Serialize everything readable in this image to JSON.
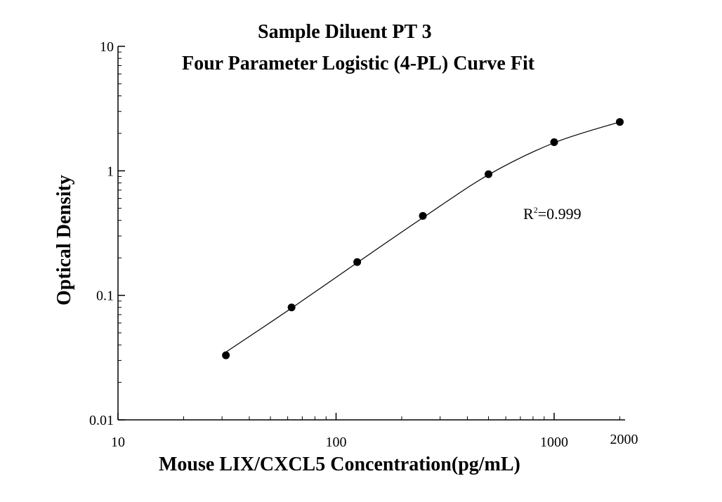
{
  "chart_data": {
    "type": "scatter",
    "title_lines": [
      "Sample Diluent PT 3",
      "Four Parameter Logistic (4-PL) Curve Fit"
    ],
    "xlabel": "Mouse LIX/CXCL5 Concentration(pg/mL)",
    "ylabel": "Optical Density",
    "x_scale": "log",
    "y_scale": "log",
    "xlim": [
      10,
      2000
    ],
    "ylim": [
      0.01,
      10
    ],
    "x_ticks": [
      {
        "value": 10,
        "label": "10"
      },
      {
        "value": 100,
        "label": "100"
      },
      {
        "value": 1000,
        "label": "1000"
      },
      {
        "value": 2000,
        "label": "2000"
      }
    ],
    "y_ticks": [
      {
        "value": 0.01,
        "label": "0.01"
      },
      {
        "value": 0.1,
        "label": "0.1"
      },
      {
        "value": 1,
        "label": "1"
      },
      {
        "value": 10,
        "label": "10"
      }
    ],
    "points": [
      {
        "x": 31.25,
        "y": 0.033
      },
      {
        "x": 62.5,
        "y": 0.08
      },
      {
        "x": 125,
        "y": 0.185
      },
      {
        "x": 250,
        "y": 0.435
      },
      {
        "x": 500,
        "y": 0.94
      },
      {
        "x": 1000,
        "y": 1.7
      },
      {
        "x": 2000,
        "y": 2.47
      }
    ],
    "fit": {
      "model": "4-PL",
      "curve": [
        {
          "x": 31.25,
          "y": 0.035
        },
        {
          "x": 62.5,
          "y": 0.079
        },
        {
          "x": 125,
          "y": 0.183
        },
        {
          "x": 250,
          "y": 0.42
        },
        {
          "x": 500,
          "y": 0.93
        },
        {
          "x": 1000,
          "y": 1.68
        },
        {
          "x": 2000,
          "y": 2.47
        }
      ]
    },
    "annotation": {
      "base": "R",
      "sup": "2",
      "rest": "=0.999"
    },
    "grid": false,
    "legend": "none",
    "colors": {
      "marker": "#000000",
      "line": "#000000",
      "axis": "#000000"
    }
  }
}
